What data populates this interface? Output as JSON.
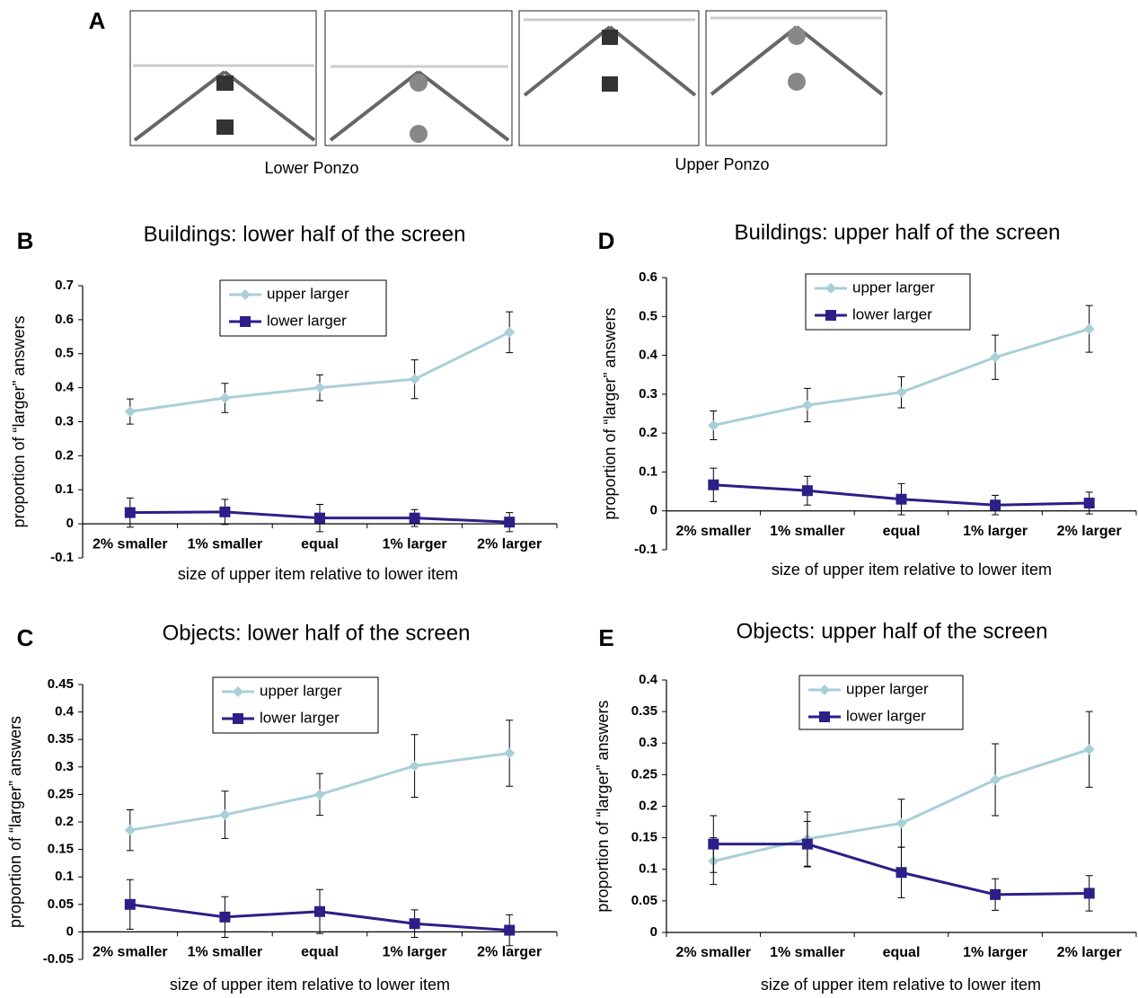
{
  "panel_a": {
    "panel": "A",
    "labels": [
      "Lower Ponzo",
      "Upper Ponzo"
    ]
  },
  "chart_data": [
    {
      "type": "line",
      "panel": "B",
      "title": "Buildings: lower half of the screen",
      "x_label": "size of upper item relative to lower item",
      "y_label": "proportion of “larger” answers",
      "categories": [
        "2% smaller",
        "1% smaller",
        "equal",
        "1% larger",
        "2% larger"
      ],
      "ylim": [
        -0.1,
        0.7
      ],
      "yticks": [
        -0.1,
        0,
        0.1,
        0.2,
        0.3,
        0.4,
        0.5,
        0.6,
        0.7
      ],
      "series": [
        {
          "name": "upper larger",
          "color": "#a9cfd7",
          "marker": "diamond",
          "values": [
            0.33,
            0.37,
            0.4,
            0.425,
            0.563
          ],
          "errors": [
            0.037,
            0.043,
            0.038,
            0.057,
            0.06
          ]
        },
        {
          "name": "lower larger",
          "color": "#2b1f88",
          "marker": "square",
          "values": [
            0.033,
            0.035,
            0.017,
            0.017,
            0.005
          ],
          "errors": [
            0.043,
            0.037,
            0.04,
            0.025,
            0.028
          ]
        }
      ]
    },
    {
      "type": "line",
      "panel": "D",
      "title": "Buildings: upper half of the screen",
      "x_label": "size of upper item relative to lower item",
      "y_label": "proportion of “larger” answers",
      "categories": [
        "2% smaller",
        "1% smaller",
        "equal",
        "1% larger",
        "2% larger"
      ],
      "ylim": [
        -0.1,
        0.6
      ],
      "yticks": [
        -0.1,
        0,
        0.1,
        0.2,
        0.3,
        0.4,
        0.5,
        0.6
      ],
      "series": [
        {
          "name": "upper larger",
          "color": "#a9cfd7",
          "marker": "diamond",
          "values": [
            0.22,
            0.272,
            0.305,
            0.395,
            0.468
          ],
          "errors": [
            0.037,
            0.043,
            0.04,
            0.057,
            0.06
          ]
        },
        {
          "name": "lower larger",
          "color": "#2b1f88",
          "marker": "square",
          "values": [
            0.067,
            0.052,
            0.03,
            0.015,
            0.02
          ],
          "errors": [
            0.043,
            0.037,
            0.04,
            0.025,
            0.028
          ]
        }
      ]
    },
    {
      "type": "line",
      "panel": "C",
      "title": "Objects: lower half of the screen",
      "x_label": "size of upper item relative to lower item",
      "y_label": "proportion of “larger” answers",
      "categories": [
        "2% smaller",
        "1% smaller",
        "equal",
        "1% larger",
        "2% larger"
      ],
      "ylim": [
        -0.05,
        0.45
      ],
      "yticks": [
        -0.05,
        0,
        0.05,
        0.1,
        0.15,
        0.2,
        0.25,
        0.3,
        0.35,
        0.4,
        0.45
      ],
      "series": [
        {
          "name": "upper larger",
          "color": "#a9cfd7",
          "marker": "diamond",
          "values": [
            0.185,
            0.213,
            0.25,
            0.302,
            0.325
          ],
          "errors": [
            0.037,
            0.043,
            0.038,
            0.057,
            0.06
          ]
        },
        {
          "name": "lower larger",
          "color": "#2b1f88",
          "marker": "square",
          "values": [
            0.05,
            0.027,
            0.037,
            0.015,
            0.003
          ],
          "errors": [
            0.045,
            0.037,
            0.04,
            0.025,
            0.028
          ]
        }
      ]
    },
    {
      "type": "line",
      "panel": "E",
      "title": "Objects: upper half of the screen",
      "x_label": "size of upper item relative to lower item",
      "y_label": "proportion of “larger” answers",
      "categories": [
        "2% smaller",
        "1% smaller",
        "equal",
        "1% larger",
        "2% larger"
      ],
      "ylim": [
        0,
        0.4
      ],
      "yticks": [
        0,
        0.05,
        0.1,
        0.15,
        0.2,
        0.25,
        0.3,
        0.35,
        0.4
      ],
      "series": [
        {
          "name": "upper larger",
          "color": "#a9cfd7",
          "marker": "diamond",
          "values": [
            0.113,
            0.148,
            0.173,
            0.242,
            0.29
          ],
          "errors": [
            0.037,
            0.043,
            0.038,
            0.057,
            0.06
          ]
        },
        {
          "name": "lower larger",
          "color": "#2b1f88",
          "marker": "square",
          "values": [
            0.14,
            0.14,
            0.095,
            0.06,
            0.062
          ],
          "errors": [
            0.045,
            0.036,
            0.04,
            0.025,
            0.028
          ]
        }
      ]
    }
  ]
}
